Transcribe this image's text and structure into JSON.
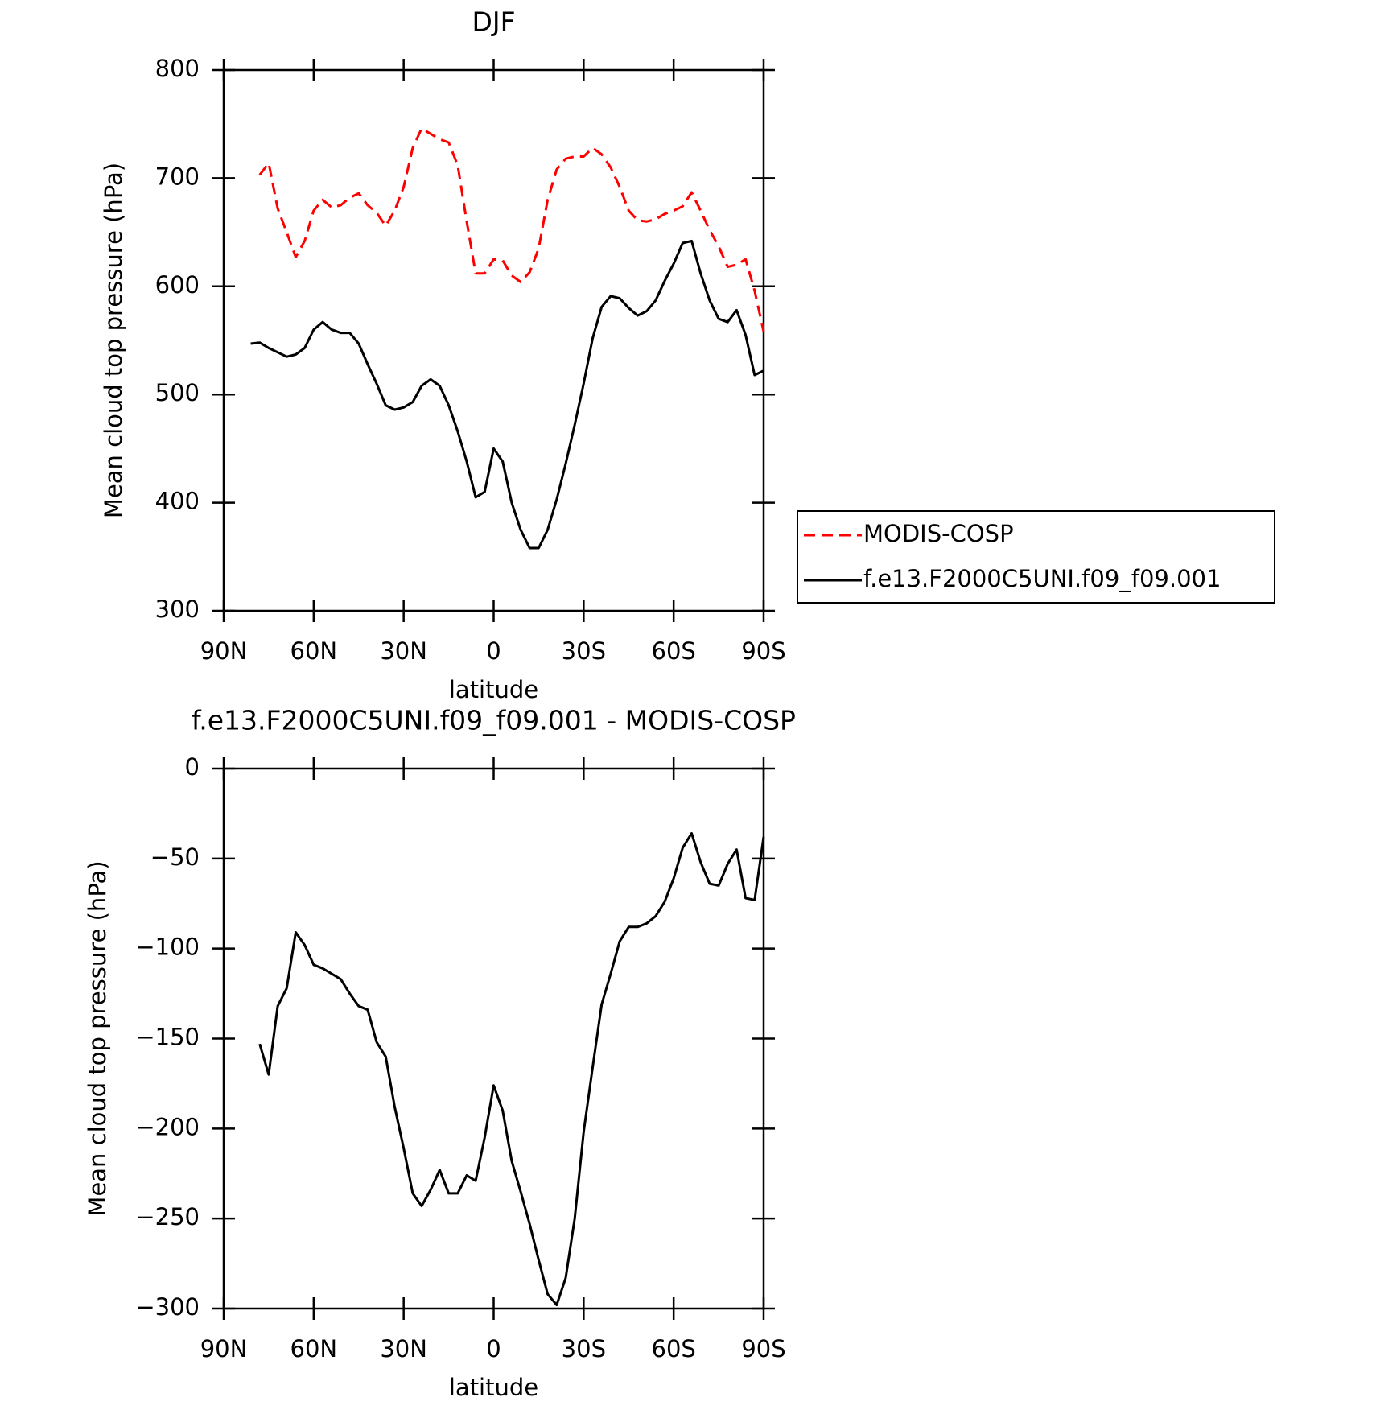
{
  "chart_data": [
    {
      "type": "line",
      "title": "DJF",
      "xlabel": "latitude",
      "ylabel": "Mean cloud top pressure (hPa)",
      "x": [
        81,
        78,
        75,
        72,
        69,
        66,
        63,
        60,
        57,
        54,
        51,
        48,
        45,
        42,
        39,
        36,
        33,
        30,
        27,
        24,
        21,
        18,
        15,
        12,
        9,
        6,
        3,
        0,
        -3,
        -6,
        -9,
        -12,
        -15,
        -18,
        -21,
        -24,
        -27,
        -30,
        -33,
        -36,
        -39,
        -42,
        -45,
        -48,
        -51,
        -54,
        -57,
        -60,
        -63,
        -66,
        -69,
        -72,
        -75,
        -78,
        -81,
        -84,
        -87,
        -90
      ],
      "series": [
        {
          "name": "MODIS-COSP",
          "color": "#ff0000",
          "line_style": "dashed",
          "values": [
            null,
            703,
            714,
            672,
            650,
            627,
            642,
            670,
            680,
            673,
            675,
            682,
            686,
            675,
            668,
            656,
            670,
            692,
            728,
            746,
            741,
            736,
            733,
            712,
            660,
            612,
            612,
            625,
            624,
            610,
            604,
            613,
            635,
            680,
            708,
            718,
            720,
            720,
            728,
            722,
            710,
            692,
            670,
            661,
            660,
            662,
            667,
            670,
            674,
            687,
            670,
            652,
            637,
            618,
            620,
            625,
            596,
            558
          ]
        },
        {
          "name": "f.e13.F2000C5UNI.f09_f09.001",
          "color": "#000000",
          "line_style": "solid",
          "values": [
            547,
            548,
            543,
            539,
            535,
            537,
            543,
            560,
            567,
            560,
            557,
            557,
            547,
            528,
            510,
            490,
            486,
            488,
            493,
            508,
            514,
            508,
            490,
            466,
            438,
            405,
            410,
            450,
            438,
            400,
            375,
            358,
            358,
            375,
            403,
            436,
            472,
            510,
            552,
            581,
            591,
            589,
            580,
            573,
            577,
            587,
            605,
            621,
            640,
            642,
            612,
            587,
            570,
            567,
            578,
            555,
            518,
            522
          ]
        }
      ],
      "xlim": [
        90,
        -90
      ],
      "xticks": [
        {
          "value": 90,
          "label": "90N"
        },
        {
          "value": 60,
          "label": "60N"
        },
        {
          "value": 30,
          "label": "30N"
        },
        0,
        {
          "value": -30,
          "label": "30S"
        },
        {
          "value": -60,
          "label": "60S"
        },
        {
          "value": -90,
          "label": "90S"
        }
      ],
      "ylim": [
        300,
        800
      ],
      "yticks": [
        300,
        400,
        500,
        600,
        700,
        800
      ],
      "legend": "right"
    },
    {
      "type": "line",
      "title": "f.e13.F2000C5UNI.f09_f09.001 - MODIS-COSP",
      "xlabel": "latitude",
      "ylabel": "Mean cloud top pressure (hPa)",
      "x": [
        81,
        78,
        75,
        72,
        69,
        66,
        63,
        60,
        57,
        54,
        51,
        48,
        45,
        42,
        39,
        36,
        33,
        30,
        27,
        24,
        21,
        18,
        15,
        12,
        9,
        6,
        3,
        0,
        -3,
        -6,
        -9,
        -12,
        -15,
        -18,
        -21,
        -24,
        -27,
        -30,
        -33,
        -36,
        -39,
        -42,
        -45,
        -48,
        -51,
        -54,
        -57,
        -60,
        -63,
        -66,
        -69,
        -72,
        -75,
        -78,
        -81,
        -84,
        -87,
        -90
      ],
      "values": [
        null,
        -153,
        -170,
        -132,
        -122,
        -91,
        -98,
        -109,
        -111,
        -114,
        -117,
        -125,
        -132,
        -134,
        -152,
        -160,
        -188,
        -211,
        -236,
        -243,
        -234,
        -223,
        -236,
        -236,
        -226,
        -229,
        -205,
        -176,
        -190,
        -218,
        -235,
        -253,
        -273,
        -292,
        -298,
        -283,
        -250,
        -202,
        -166,
        -131,
        -114,
        -96,
        -88,
        -88,
        -86,
        -82,
        -74,
        -61,
        -44,
        -36,
        -52,
        -64,
        -65,
        -53,
        -45,
        -72,
        -73,
        -38
      ],
      "color": "#000000",
      "line_style": "solid",
      "xlim": [
        90,
        -90
      ],
      "xticks": [
        {
          "value": 90,
          "label": "90N"
        },
        {
          "value": 60,
          "label": "60N"
        },
        {
          "value": 30,
          "label": "30N"
        },
        0,
        {
          "value": -30,
          "label": "30S"
        },
        {
          "value": -60,
          "label": "60S"
        },
        {
          "value": -90,
          "label": "90S"
        }
      ],
      "ylim": [
        -300,
        0
      ],
      "yticks": [
        {
          "value": -300,
          "label": "−300"
        },
        {
          "value": -250,
          "label": "−250"
        },
        {
          "value": -200,
          "label": "−200"
        },
        {
          "value": -150,
          "label": "−150"
        },
        {
          "value": -100,
          "label": "−100"
        },
        {
          "value": -50,
          "label": "−50"
        },
        0
      ]
    }
  ]
}
